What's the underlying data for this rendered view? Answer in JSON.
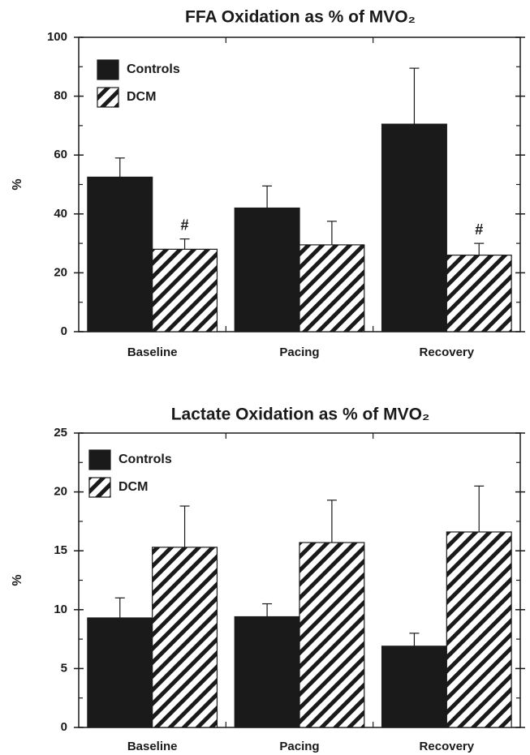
{
  "chart_data": [
    {
      "type": "bar",
      "title": "FFA Oxidation as % of MVO₂",
      "y_label": "%",
      "categories": [
        "Baseline",
        "Pacing",
        "Recovery"
      ],
      "series": [
        {
          "name": "Controls",
          "color": "#1a1a1a",
          "pattern": "solid",
          "values": [
            52.5,
            42,
            70.5
          ],
          "errors": [
            6.5,
            7.5,
            19
          ]
        },
        {
          "name": "DCM",
          "color": "#1a1a1a",
          "pattern": "hatch",
          "values": [
            28,
            29.5,
            26
          ],
          "errors": [
            3.5,
            8,
            4
          ]
        }
      ],
      "annotations": [
        {
          "text": "#",
          "category": "Baseline",
          "series": "DCM"
        },
        {
          "text": "#",
          "category": "Recovery",
          "series": "DCM"
        }
      ],
      "ylim": [
        0,
        100
      ],
      "yticks": [
        0,
        20,
        40,
        60,
        80,
        100
      ],
      "minor_yticks": [
        10,
        30,
        50,
        70,
        90
      ],
      "grid": false,
      "legend": "upper left"
    },
    {
      "type": "bar",
      "title": "Lactate Oxidation as % of MVO₂",
      "y_label": "%",
      "categories": [
        "Baseline",
        "Pacing",
        "Recovery"
      ],
      "series": [
        {
          "name": "Controls",
          "color": "#1a1a1a",
          "pattern": "solid",
          "values": [
            9.3,
            9.4,
            6.9
          ],
          "errors": [
            1.7,
            1.1,
            1.1
          ]
        },
        {
          "name": "DCM",
          "color": "#1a1a1a",
          "pattern": "hatch",
          "values": [
            15.3,
            15.7,
            16.6
          ],
          "errors": [
            3.5,
            3.6,
            3.9
          ]
        }
      ],
      "annotations": [],
      "ylim": [
        0,
        25
      ],
      "yticks": [
        0,
        5,
        10,
        15,
        20,
        25
      ],
      "minor_yticks": [
        2.5,
        7.5,
        12.5,
        17.5,
        22.5
      ],
      "grid": false,
      "legend": "upper left"
    }
  ]
}
